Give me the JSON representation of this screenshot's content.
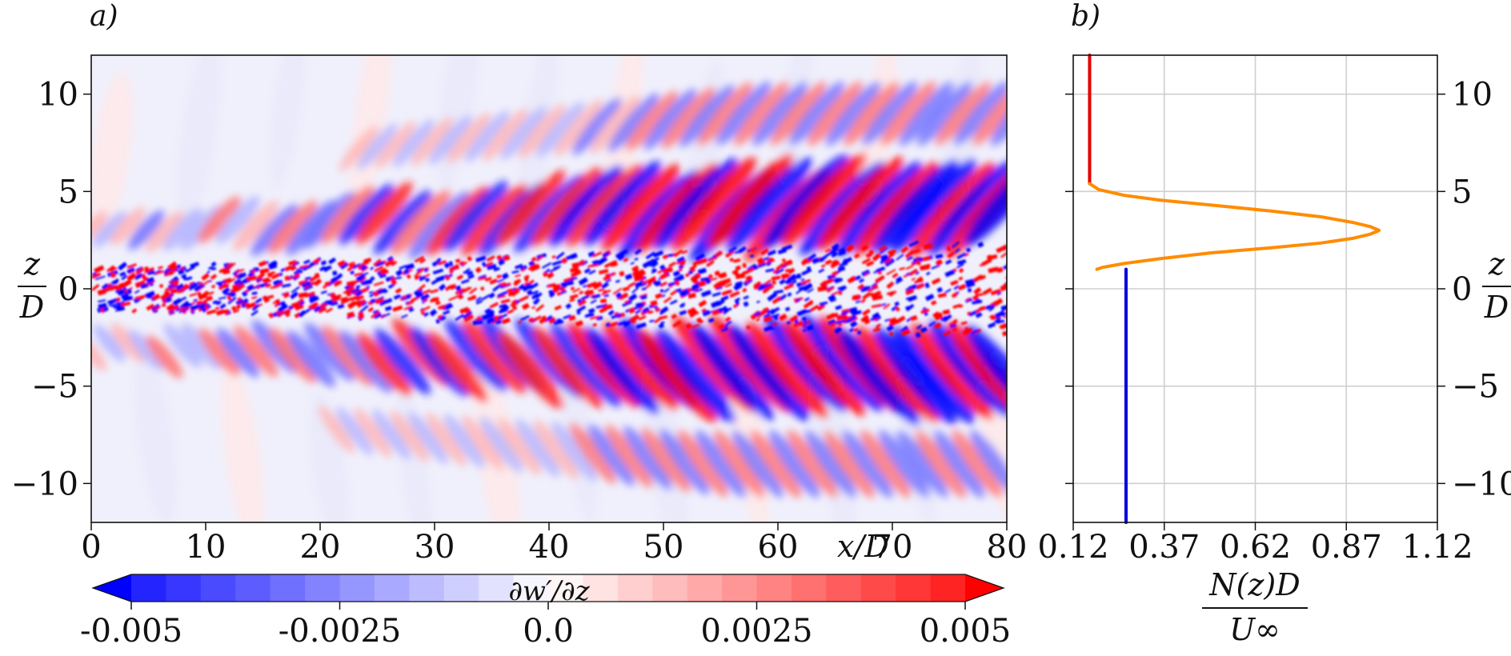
{
  "chart_data": [
    {
      "type": "heatmap",
      "panel_label": "a)",
      "x_ticks": [
        "0",
        "10",
        "20",
        "30",
        "40",
        "50",
        "60",
        "70",
        "80"
      ],
      "x_tick_values": [
        0,
        10,
        20,
        30,
        40,
        50,
        60,
        70,
        80
      ],
      "xlabel": "x/D",
      "xlim": [
        0,
        80
      ],
      "y_ticks": [
        "10",
        "5",
        "0",
        "−5",
        "−10"
      ],
      "y_tick_values": [
        10,
        5,
        0,
        -5,
        -10
      ],
      "ylabel_num": "z",
      "ylabel_den": "D",
      "ylim": [
        -12,
        12
      ],
      "colorbar": {
        "label": "∂w′/∂z",
        "ticks": [
          "-0.005",
          "-0.0025",
          "0.0",
          "0.0025",
          "0.005"
        ],
        "tick_values": [
          -0.005,
          -0.0025,
          0.0,
          0.0025,
          0.005
        ],
        "range": [
          -0.005,
          0.005
        ],
        "levels": 24,
        "colormap": "bwr",
        "extend": "both"
      },
      "grid": false
    },
    {
      "type": "line",
      "panel_label": "b)",
      "x_ticks": [
        "0.12",
        "0.37",
        "0.62",
        "0.87",
        "1.12"
      ],
      "x_tick_values": [
        0.12,
        0.37,
        0.62,
        0.87,
        1.12
      ],
      "xlabel_num": "N(z)D",
      "xlabel_den": "U∞",
      "xlim": [
        0.12,
        1.12
      ],
      "y_ticks": [
        "10",
        "5",
        "0",
        "−5",
        "−10"
      ],
      "y_tick_values": [
        10,
        5,
        0,
        -5,
        -10
      ],
      "ylabel_num": "z",
      "ylabel_den": "D",
      "ylim": [
        -12,
        12
      ],
      "y_axis_side": "right",
      "grid": true,
      "series": [
        {
          "color": "#e30000",
          "x": [
            0.165,
            0.165
          ],
          "y": [
            12,
            5.4
          ]
        },
        {
          "color": "#ff8c00",
          "x": [
            0.165,
            0.19,
            0.26,
            0.36,
            0.5,
            0.66,
            0.8,
            0.89,
            0.935,
            0.96,
            0.935,
            0.89,
            0.8,
            0.66,
            0.5,
            0.36,
            0.26,
            0.2,
            0.185
          ],
          "y": [
            5.4,
            5.1,
            4.8,
            4.55,
            4.3,
            4.0,
            3.7,
            3.4,
            3.2,
            3.0,
            2.8,
            2.6,
            2.35,
            2.1,
            1.85,
            1.55,
            1.3,
            1.1,
            1.0
          ]
        },
        {
          "color": "#0000e0",
          "x": [
            0.265,
            0.265
          ],
          "y": [
            1.0,
            -12
          ]
        }
      ]
    }
  ]
}
